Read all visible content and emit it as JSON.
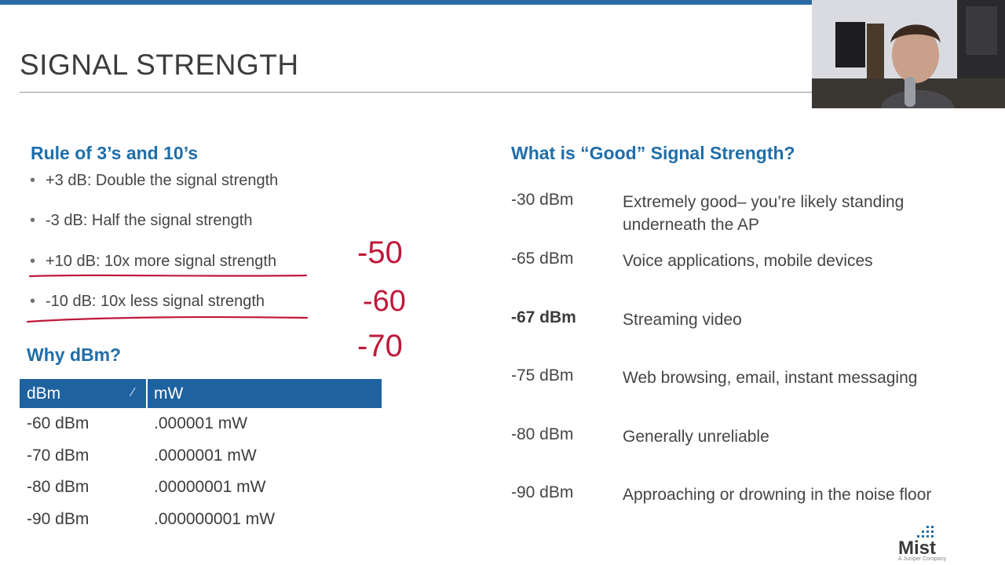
{
  "slide": {
    "title": "SIGNAL STRENGTH"
  },
  "rule": {
    "heading": "Rule of 3’s and 10’s",
    "bullets": [
      "+3 dB: Double the signal strength",
      "-3 dB: Half the signal strength",
      "+10 dB: 10x more signal strength",
      "-10 dB: 10x less signal strength"
    ]
  },
  "why": {
    "heading": "Why dBm?",
    "table": {
      "headers": [
        "dBm",
        "mW"
      ],
      "rows": [
        [
          "-60 dBm",
          ".000001 mW"
        ],
        [
          "-70 dBm",
          ".0000001 mW"
        ],
        [
          "-80 dBm",
          ".00000001 mW"
        ],
        [
          "-90 dBm",
          ".000000001 mW"
        ]
      ]
    }
  },
  "good": {
    "heading": "What is “Good” Signal Strength?",
    "rows": [
      {
        "level": "-30 dBm",
        "desc": "Extremely good– you’re likely standing underneath the AP"
      },
      {
        "level": "-65 dBm",
        "desc": "Voice applications, mobile devices"
      },
      {
        "level": "-67 dBm",
        "desc": "Streaming video"
      },
      {
        "level": "-75 dBm",
        "desc": "Web browsing, email, instant messaging"
      },
      {
        "level": "-80 dBm",
        "desc": "Generally unreliable"
      },
      {
        "level": "-90 dBm",
        "desc": "Approaching or drowning in the noise floor"
      }
    ]
  },
  "handwriting": [
    "-50",
    "-60",
    "-70"
  ],
  "logo": {
    "name": "Mist",
    "tagline": "A Juniper Company"
  },
  "colors": {
    "accent": "#1f6ea9",
    "header_bg": "#1e62a0",
    "ink": "#c0183a",
    "topbar": "#2a6ba5"
  },
  "icons": {
    "sort": "pencil-icon"
  }
}
